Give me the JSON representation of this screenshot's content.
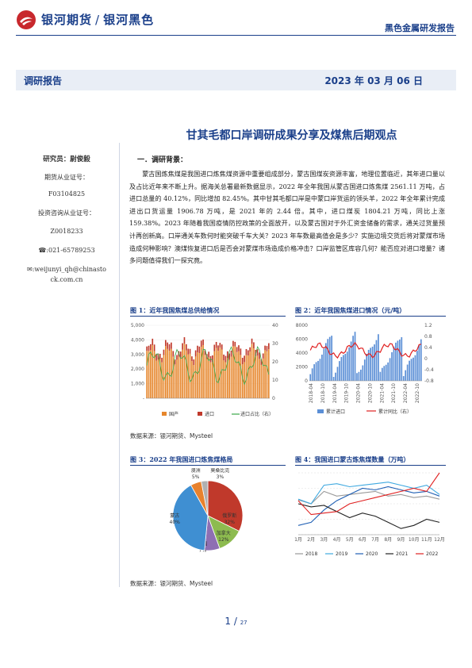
{
  "header": {
    "brand_main": "银河期货",
    "brand_sub": "银河黑色",
    "report_type": "黑色金属研发报告"
  },
  "band": {
    "left": "调研报告",
    "right": "2023 年 03 月 06 日"
  },
  "title": "甘其毛都口岸调研成果分享及煤焦后期观点",
  "sidebar": {
    "researcher": "研究员：尉俊毅",
    "license_label": "期货从业证号：",
    "license_no": "F03104825",
    "invest_label": "投资咨询从业证号：",
    "invest_no": "Z0018233",
    "phone": "☎:021-65789253",
    "email_line1": "✉:weijunyi_qh@chinasto",
    "email_line2": "ck.com.cn"
  },
  "section": {
    "heading": "一．调研背景：",
    "paragraph": "蒙古国炼焦煤是我国进口炼焦煤资源中重要组成部分，蒙古国煤炭资源丰富，地理位置临近，其年进口量以及占比近年来不断上升。据海关总署最新数据显示，2022 年全年我国从蒙古国进口炼焦煤 2561.11 万吨，占进口总量的 40.12%，同比增加 82.45%。其中甘其毛都口岸是中蒙口岸货运的领头羊，2022 年全年累计完成进出口货运量 1906.78 万吨，是 2021 年的 2.44 倍。其中，进口煤炭 1804.21 万吨，同比上涨 159.38%。2023 年随着我国疫情防控政策的全面放开，以及蒙古国对于外汇资金储备的需求，通关过货量预计再创新高。口岸通关车数何时能突破千车大关？2023 年车数最高值会是多少？实施边境交货后将对蒙煤市场造成何种影响？澳煤恢复进口后是否会对蒙煤市场造成价格冲击？口岸监管区库容几何？能否应对进口增量？诸多问题值得我们一探究竟。"
  },
  "figures": {
    "fig1_title": "图 1：近年我国焦煤总供给情况",
    "fig2_title": "图 2：近年我国焦煤进口情况（元/吨）",
    "fig3_title": "图 3：2022 年我国进口炼焦煤格局",
    "fig4_title": "图 4：我国进口蒙古炼焦煤数量（万吨）",
    "source1": "数据来源：银河期货、Mysteel",
    "source2": "数据来源：银河期货、Mysteel"
  },
  "chart_data": [
    {
      "type": "bar",
      "title": "图 1：近年我国焦煤总供给情况",
      "left_ticks": [
        "5,000",
        "4,000",
        "3,000",
        "2,000",
        "1,000",
        "-"
      ],
      "right_ticks": [
        "40",
        "30",
        "20",
        "10",
        "0"
      ],
      "series": [
        {
          "name": "国产"
        },
        {
          "name": "进口"
        },
        {
          "name": "进口占比（右）"
        }
      ]
    },
    {
      "type": "bar",
      "title": "图 2：近年我国焦煤进口情况（元/吨）",
      "left_ticks": [
        "8000",
        "6000",
        "4000",
        "2000",
        "0"
      ],
      "right_ticks": [
        "1.2",
        "0.8",
        "0.4",
        "0",
        "-0.4",
        "-0.8"
      ],
      "x_ticks": [
        "2018-04",
        "2018-10",
        "2019-04",
        "2019-10",
        "2020-04",
        "2020-10",
        "2021-04",
        "2021-10",
        "2022-04",
        "2022-10"
      ],
      "series": [
        {
          "name": "累计进口"
        },
        {
          "name": "累计同比（右）"
        }
      ]
    },
    {
      "type": "pie",
      "title": "图 3：2022 年我国进口炼焦煤格局",
      "slices": [
        {
          "label": "俄罗斯",
          "value": 32
        },
        {
          "label": "加拿大",
          "value": 12
        },
        {
          "label": "美国",
          "value": 7
        },
        {
          "label": "蒙古",
          "value": 40
        },
        {
          "label": "澳洲",
          "value": 5
        },
        {
          "label": "莫桑比克",
          "value": 3
        }
      ],
      "colors": [
        "#c0392b",
        "#8dbb4f",
        "#8e6fb3",
        "#3f8fd2",
        "#e8822e",
        "#b0b0b0"
      ]
    },
    {
      "type": "line",
      "title": "图 4：我国进口蒙古炼焦煤数量（万吨）",
      "categories": [
        "1月",
        "2月",
        "3月",
        "4月",
        "5月",
        "6月",
        "7月",
        "8月",
        "9月",
        "10月",
        "11月",
        "12月"
      ],
      "ylim": [
        0,
        400
      ],
      "series": [
        {
          "name": "2018",
          "values": [
            225,
            200,
            280,
            250,
            260,
            270,
            280,
            250,
            260,
            240,
            250,
            230
          ]
        },
        {
          "name": "2019",
          "values": [
            230,
            200,
            320,
            330,
            310,
            320,
            330,
            340,
            320,
            300,
            320,
            260
          ]
        },
        {
          "name": "2020",
          "values": [
            60,
            80,
            160,
            220,
            260,
            300,
            290,
            310,
            290,
            270,
            280,
            250
          ]
        },
        {
          "name": "2021",
          "values": [
            200,
            180,
            190,
            150,
            110,
            140,
            120,
            80,
            40,
            60,
            100,
            80
          ]
        },
        {
          "name": "2022",
          "values": [
            220,
            130,
            140,
            150,
            200,
            220,
            240,
            260,
            280,
            300,
            280,
            400
          ]
        }
      ],
      "colors": [
        "#9a9a9a",
        "#3fa9e0",
        "#1f5fb4",
        "#222222",
        "#e02020"
      ]
    }
  ],
  "page": {
    "current": "1",
    "sep": "/",
    "total": "27"
  },
  "colors": {
    "brand": "#1a3f8a",
    "accent_red": "#d22"
  }
}
